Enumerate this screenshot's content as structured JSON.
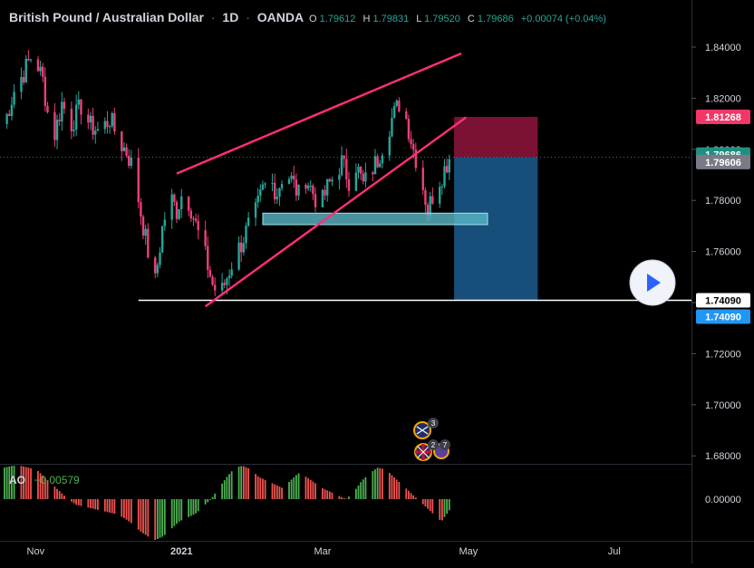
{
  "header": {
    "symbol": "British Pound / Australian Dollar",
    "sep1": "·",
    "interval": "1D",
    "sep2": "·",
    "exchange": "OANDA",
    "o_label": "O",
    "o_value": "1.79612",
    "h_label": "H",
    "h_value": "1.79831",
    "l_label": "L",
    "l_value": "1.79520",
    "c_label": "C",
    "c_value": "1.79686",
    "change": "+0.00074 (+0.04%)"
  },
  "indicator": {
    "name": "AO",
    "value": "−0.00579"
  },
  "colors": {
    "background": "#000000",
    "up": "#26a69a",
    "down": "#ef5350",
    "channel": "#ff2e7a",
    "ao_up": "#4caf50",
    "ao_down": "#ef5350",
    "stop_zone": "#7b1234",
    "target_zone": "#174e7a",
    "support_box": "#5ab8c6",
    "stop_badge": "#f23668",
    "last_badge": "#1f8f7f",
    "prev_badge": "#787b86",
    "target_badge": "#2196f3"
  },
  "chart_data": {
    "type": "candlestick",
    "symbol": "GBPAUD",
    "timeframe": "1D",
    "x_axis": {
      "type": "date",
      "start": "2020-10-19",
      "end": "2021-07-31",
      "ticks": [
        "Nov",
        "2021",
        "Mar",
        "May",
        "Jul"
      ]
    },
    "y_axis": {
      "scale": "linear",
      "range": [
        1.655,
        1.852
      ],
      "ticks": [
        "1.84000",
        "1.82000",
        "1.80000",
        "1.78000",
        "1.76000",
        "1.74000",
        "1.72000",
        "1.70000",
        "1.68000"
      ]
    },
    "ohlc_last": {
      "open": 1.79612,
      "high": 1.79831,
      "low": 1.7952,
      "close": 1.79686
    },
    "close_path": [
      [
        "2020-10-19",
        1.81
      ],
      [
        "2020-10-23",
        1.823
      ],
      [
        "2020-10-27",
        1.83
      ],
      [
        "2020-10-31",
        1.838
      ],
      [
        "2020-11-04",
        1.827
      ],
      [
        "2020-11-08",
        1.802
      ],
      [
        "2020-11-12",
        1.818
      ],
      [
        "2020-11-16",
        1.81
      ],
      [
        "2020-11-20",
        1.817
      ],
      [
        "2020-11-24",
        1.809
      ],
      [
        "2020-11-28",
        1.807
      ],
      [
        "2020-12-02",
        1.812
      ],
      [
        "2020-12-06",
        1.803
      ],
      [
        "2020-12-09",
        1.799
      ],
      [
        "2020-12-12",
        1.792
      ],
      [
        "2020-12-15",
        1.775
      ],
      [
        "2020-12-18",
        1.76
      ],
      [
        "2020-12-21",
        1.748
      ],
      [
        "2020-12-24",
        1.769
      ],
      [
        "2020-12-27",
        1.782
      ],
      [
        "2020-12-30",
        1.776
      ],
      [
        "2021-01-02",
        1.785
      ],
      [
        "2021-01-05",
        1.777
      ],
      [
        "2021-01-08",
        1.767
      ],
      [
        "2021-01-11",
        1.758
      ],
      [
        "2021-01-14",
        1.747
      ],
      [
        "2021-01-17",
        1.742
      ],
      [
        "2021-01-20",
        1.75
      ],
      [
        "2021-01-23",
        1.758
      ],
      [
        "2021-01-26",
        1.763
      ],
      [
        "2021-01-29",
        1.77
      ],
      [
        "2021-02-01",
        1.775
      ],
      [
        "2021-02-04",
        1.784
      ],
      [
        "2021-02-07",
        1.788
      ],
      [
        "2021-02-10",
        1.783
      ],
      [
        "2021-02-13",
        1.792
      ],
      [
        "2021-02-16",
        1.788
      ],
      [
        "2021-02-19",
        1.782
      ],
      [
        "2021-02-22",
        1.789
      ],
      [
        "2021-02-25",
        1.783
      ],
      [
        "2021-02-28",
        1.777
      ],
      [
        "2021-03-03",
        1.785
      ],
      [
        "2021-03-06",
        1.79
      ],
      [
        "2021-03-09",
        1.795
      ],
      [
        "2021-03-12",
        1.788
      ],
      [
        "2021-03-15",
        1.794
      ],
      [
        "2021-03-18",
        1.786
      ],
      [
        "2021-03-21",
        1.791
      ],
      [
        "2021-03-24",
        1.796
      ],
      [
        "2021-03-27",
        1.804
      ],
      [
        "2021-03-30",
        1.812
      ],
      [
        "2021-04-02",
        1.818
      ],
      [
        "2021-04-05",
        1.812
      ],
      [
        "2021-04-08",
        1.8
      ],
      [
        "2021-04-11",
        1.79
      ],
      [
        "2021-04-14",
        1.776
      ],
      [
        "2021-04-17",
        1.785
      ],
      [
        "2021-04-20",
        1.79
      ],
      [
        "2021-04-23",
        1.797
      ]
    ],
    "ao_histogram": {
      "start": "2020-10-19",
      "end": "2021-04-23",
      "values": [
        0.017,
        0.018,
        0.018,
        0.017,
        0.016,
        0.012,
        0.008,
        0.004,
        0.0,
        -0.003,
        -0.004,
        -0.005,
        -0.006,
        -0.007,
        -0.008,
        -0.01,
        -0.013,
        -0.017,
        -0.02,
        -0.022,
        -0.02,
        -0.016,
        -0.012,
        -0.01,
        -0.008,
        -0.004,
        0.0,
        0.006,
        0.012,
        0.017,
        0.018,
        0.016,
        0.012,
        0.01,
        0.008,
        0.006,
        0.01,
        0.014,
        0.012,
        0.009,
        0.006,
        0.004,
        0.002,
        0.0,
        0.004,
        0.01,
        0.014,
        0.017,
        0.016,
        0.012,
        0.008,
        0.004,
        0.0,
        -0.004,
        -0.008,
        -0.012,
        -0.006
      ]
    },
    "annotations": {
      "channel_upper": [
        [
          "2020-12-30",
          1.7905
        ],
        [
          "2021-04-28",
          1.8375
        ]
      ],
      "channel_lower": [
        [
          "2021-01-11",
          1.7385
        ],
        [
          "2021-04-30",
          1.8125
        ]
      ],
      "support_zone": {
        "from": "2021-02-04",
        "to": "2021-05-09",
        "top": 1.775,
        "bottom": 1.7705
      },
      "horizontal_line": {
        "from": "2020-12-14",
        "value": 1.7409
      },
      "short_position": {
        "from": "2021-04-25",
        "to": "2021-05-30",
        "entry": 1.7968,
        "stop": 1.81268,
        "target": 1.7409
      }
    },
    "price_badges": [
      "1.81268",
      "1.79686",
      "1.79606",
      "1.74090",
      "1.74090"
    ],
    "ao_axis_tick": "0.00000",
    "event_markers": [
      "3",
      "2",
      "7"
    ]
  }
}
